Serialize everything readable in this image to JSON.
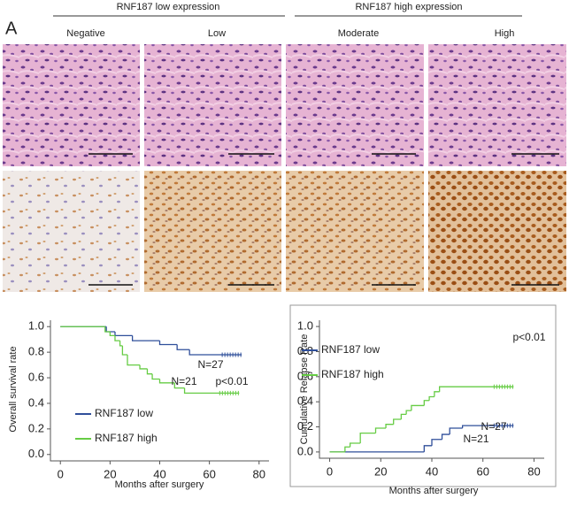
{
  "figure": {
    "panel_label": "A",
    "groups": [
      "RNF187 low expression",
      "RNF187 high expression"
    ],
    "columns": [
      "Negative",
      "Low",
      "Moderate",
      "High"
    ]
  },
  "chart_data": [
    {
      "type": "step",
      "y_label": "Overall survival rate",
      "x_label": "Months after surgery",
      "xlim": [
        -4,
        84
      ],
      "ylim": [
        -0.05,
        1.05
      ],
      "xticks": [
        0,
        20,
        40,
        60,
        80
      ],
      "yticks": [
        {
          "value": 0,
          "label": "0.0"
        },
        0.2,
        0.4,
        0.6,
        0.8,
        {
          "value": 1,
          "label": "1.0"
        }
      ],
      "legend": "lower left",
      "frame": false,
      "annotations": [
        "N=27",
        "N=21",
        "p<0.01"
      ],
      "series": [
        {
          "name": "RNF187 low",
          "color": "#2f4f9a",
          "x": [
            0,
            18.5,
            22,
            29,
            40,
            47,
            52,
            73
          ],
          "values": [
            1,
            0.96,
            0.93,
            0.89,
            0.86,
            0.82,
            0.78,
            0.78
          ]
        },
        {
          "name": "RNF187 high",
          "color": "#66cc44",
          "x": [
            0,
            18,
            20,
            22,
            24,
            25,
            27,
            32,
            35,
            37,
            40,
            46,
            50,
            72
          ],
          "values": [
            1,
            0.96,
            0.93,
            0.89,
            0.85,
            0.78,
            0.7,
            0.67,
            0.63,
            0.59,
            0.56,
            0.52,
            0.48,
            0.48
          ]
        }
      ]
    },
    {
      "type": "step",
      "y_label": "Cumulative Relapse Rate",
      "x_label": "Months after surgery",
      "xlim": [
        -4,
        84
      ],
      "ylim": [
        -0.05,
        1.05
      ],
      "xticks": [
        0,
        20,
        40,
        60,
        80
      ],
      "yticks": [
        {
          "value": 0,
          "label": "0.0"
        },
        0.2,
        0.4,
        0.6,
        0.8,
        {
          "value": 1,
          "label": "1.0"
        }
      ],
      "legend": "upper left",
      "frame": true,
      "annotations": [
        "p<0.01",
        "N=27",
        "N=21"
      ],
      "series": [
        {
          "name": "RNF187 low",
          "color": "#2f4f9a",
          "x": [
            0,
            37,
            40,
            44,
            47,
            52,
            72
          ],
          "values": [
            0,
            0.05,
            0.1,
            0.14,
            0.19,
            0.21,
            0.21
          ]
        },
        {
          "name": "RNF187 high",
          "color": "#66cc44",
          "x": [
            0,
            6,
            8,
            12,
            18,
            22,
            25,
            28,
            30,
            32,
            37,
            39,
            41,
            43,
            72
          ],
          "values": [
            0,
            0.04,
            0.07,
            0.15,
            0.19,
            0.22,
            0.26,
            0.3,
            0.33,
            0.37,
            0.41,
            0.44,
            0.48,
            0.52,
            0.52
          ]
        }
      ]
    }
  ]
}
